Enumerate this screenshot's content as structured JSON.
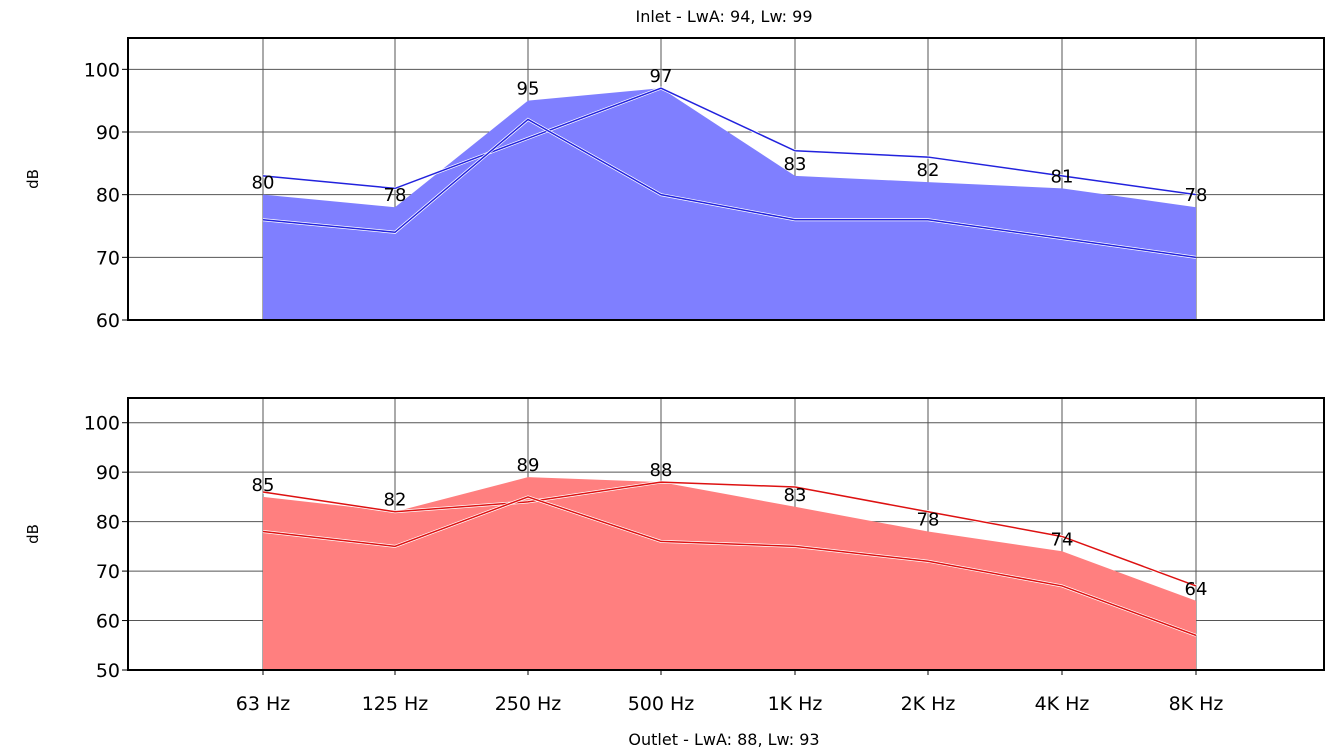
{
  "chart_data": [
    {
      "type": "area",
      "title": "Inlet - LwA: 94, Lw: 99",
      "ylabel": "dB",
      "ylim": [
        60,
        105
      ],
      "yticks": [
        60,
        70,
        80,
        90,
        100
      ],
      "categories": [
        "63 Hz",
        "125 Hz",
        "250 Hz",
        "500 Hz",
        "1K Hz",
        "2K Hz",
        "4K Hz",
        "8K Hz"
      ],
      "grid": true,
      "fill_color": "#7f7fff",
      "line_color": "#2222dd",
      "series": [
        {
          "values": [
            80,
            78,
            95,
            97,
            83,
            82,
            81,
            78
          ],
          "style": "filled-area"
        },
        {
          "values": [
            83,
            81,
            89,
            97,
            87,
            86,
            83,
            80
          ],
          "style": "line"
        },
        {
          "values": [
            76,
            74,
            92,
            80,
            76,
            76,
            73,
            70
          ],
          "style": "line"
        }
      ],
      "data_labels": [
        "80",
        "78",
        "95",
        "97",
        "83",
        "82",
        "81",
        "78"
      ]
    },
    {
      "type": "area",
      "title": "Outlet - LwA: 88, Lw: 93",
      "ylabel": "dB",
      "ylim": [
        50,
        105
      ],
      "yticks": [
        50,
        60,
        70,
        80,
        90,
        100
      ],
      "categories": [
        "63 Hz",
        "125 Hz",
        "250 Hz",
        "500 Hz",
        "1K Hz",
        "2K Hz",
        "4K Hz",
        "8K Hz"
      ],
      "grid": true,
      "fill_color": "#ff7f7f",
      "line_color": "#dd1111",
      "series": [
        {
          "values": [
            85,
            82,
            89,
            88,
            83,
            78,
            74,
            64
          ],
          "style": "filled-area"
        },
        {
          "values": [
            86,
            82,
            84,
            88,
            87,
            82,
            77,
            67
          ],
          "style": "line"
        },
        {
          "values": [
            78,
            75,
            85,
            76,
            75,
            72,
            67,
            57
          ],
          "style": "line"
        }
      ],
      "data_labels": [
        "85",
        "82",
        "89",
        "88",
        "83",
        "78",
        "74",
        "64"
      ]
    }
  ]
}
